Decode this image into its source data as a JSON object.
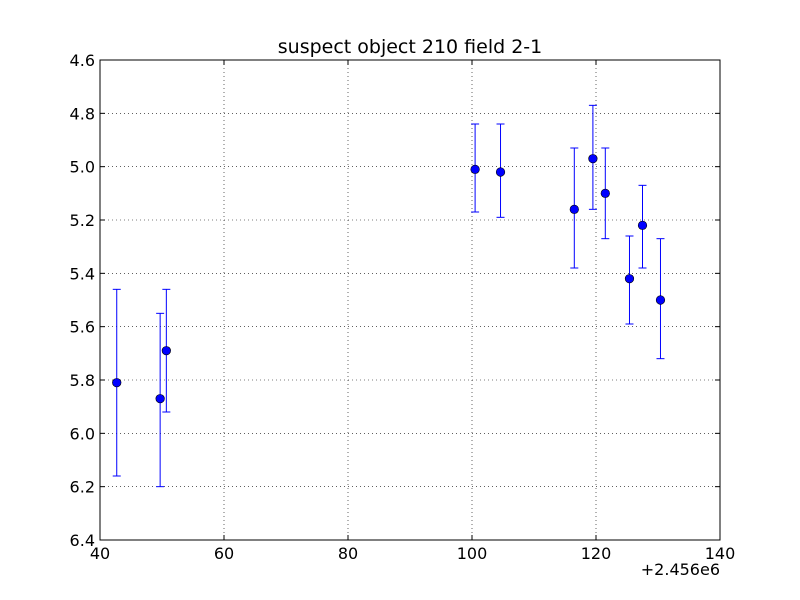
{
  "chart_data": {
    "type": "scatter",
    "title": "suspect object 210 field 2-1",
    "xlabel": "",
    "ylabel": "",
    "x_offset_label": "+2.456e6",
    "xlim": [
      40,
      140
    ],
    "ylim": [
      6.4,
      4.6
    ],
    "y_inverted": true,
    "x_ticks": [
      "40",
      "60",
      "80",
      "100",
      "120",
      "140"
    ],
    "y_ticks": [
      "4.6",
      "4.8",
      "5.0",
      "5.2",
      "5.4",
      "5.6",
      "5.8",
      "6.0",
      "6.2",
      "6.4"
    ],
    "grid": true,
    "marker_color": "#0000ff",
    "series": [
      {
        "points": [
          {
            "x": 42.7,
            "y": 5.81,
            "yerr_low": 5.46,
            "yerr_high": 6.16
          },
          {
            "x": 49.7,
            "y": 5.87,
            "yerr_low": 5.55,
            "yerr_high": 6.2
          },
          {
            "x": 50.7,
            "y": 5.69,
            "yerr_low": 5.46,
            "yerr_high": 5.92
          },
          {
            "x": 100.5,
            "y": 5.01,
            "yerr_low": 4.84,
            "yerr_high": 5.17
          },
          {
            "x": 104.6,
            "y": 5.02,
            "yerr_low": 4.84,
            "yerr_high": 5.19
          },
          {
            "x": 116.5,
            "y": 5.16,
            "yerr_low": 4.93,
            "yerr_high": 5.38
          },
          {
            "x": 119.5,
            "y": 4.97,
            "yerr_low": 4.77,
            "yerr_high": 5.16
          },
          {
            "x": 121.5,
            "y": 5.1,
            "yerr_low": 4.93,
            "yerr_high": 5.27
          },
          {
            "x": 125.4,
            "y": 5.42,
            "yerr_low": 5.26,
            "yerr_high": 5.59
          },
          {
            "x": 127.5,
            "y": 5.22,
            "yerr_low": 5.07,
            "yerr_high": 5.38
          },
          {
            "x": 130.4,
            "y": 5.5,
            "yerr_low": 5.27,
            "yerr_high": 5.72
          }
        ]
      }
    ]
  }
}
